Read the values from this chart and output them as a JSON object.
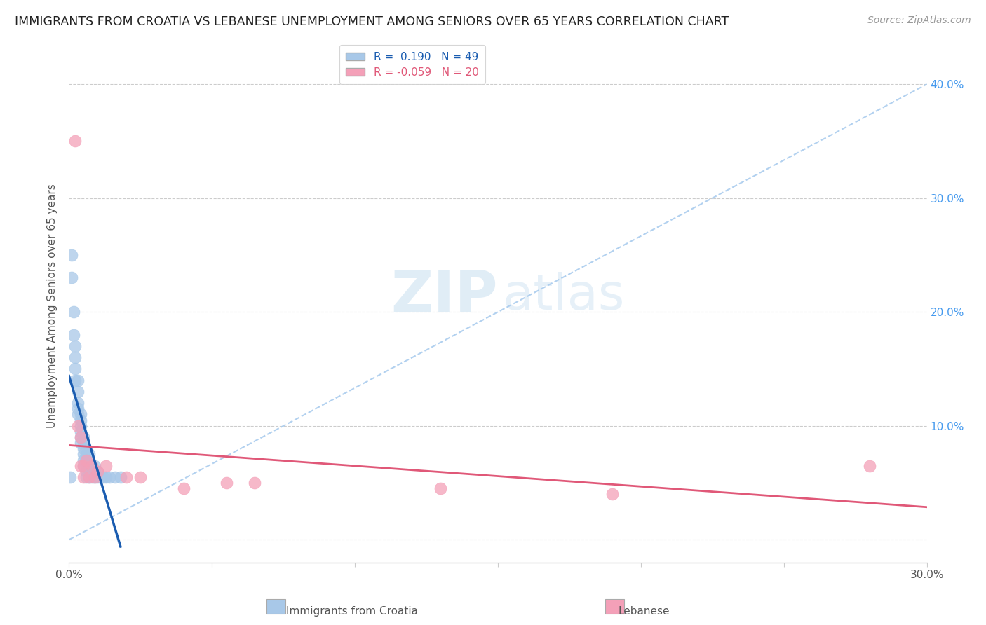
{
  "title": "IMMIGRANTS FROM CROATIA VS LEBANESE UNEMPLOYMENT AMONG SENIORS OVER 65 YEARS CORRELATION CHART",
  "source": "Source: ZipAtlas.com",
  "ylabel": "Unemployment Among Seniors over 65 years",
  "x_label_croatia": "Immigrants from Croatia",
  "x_label_lebanese": "Lebanese",
  "xlim": [
    0.0,
    0.3
  ],
  "ylim": [
    -0.02,
    0.43
  ],
  "xticks": [
    0.0,
    0.05,
    0.1,
    0.15,
    0.2,
    0.25,
    0.3
  ],
  "xtick_labels": [
    "0.0%",
    "",
    "",
    "",
    "",
    "",
    "30.0%"
  ],
  "ytick_labels_right": [
    "",
    "10.0%",
    "20.0%",
    "30.0%",
    "40.0%"
  ],
  "yticks": [
    0.0,
    0.1,
    0.2,
    0.3,
    0.4
  ],
  "R_croatia": 0.19,
  "N_croatia": 49,
  "R_lebanese": -0.059,
  "N_lebanese": 20,
  "color_croatia": "#a8c8e8",
  "color_lebanese": "#f4a0b8",
  "line_color_croatia": "#1a5cb0",
  "line_color_lebanese": "#e05878",
  "scatter_croatia_x": [
    0.0005,
    0.001,
    0.001,
    0.0015,
    0.0015,
    0.002,
    0.002,
    0.002,
    0.002,
    0.003,
    0.003,
    0.003,
    0.003,
    0.003,
    0.004,
    0.004,
    0.004,
    0.004,
    0.004,
    0.004,
    0.005,
    0.005,
    0.005,
    0.005,
    0.005,
    0.005,
    0.006,
    0.006,
    0.006,
    0.006,
    0.006,
    0.007,
    0.007,
    0.007,
    0.007,
    0.008,
    0.008,
    0.008,
    0.009,
    0.009,
    0.009,
    0.01,
    0.01,
    0.011,
    0.012,
    0.013,
    0.014,
    0.016,
    0.018
  ],
  "scatter_croatia_y": [
    0.055,
    0.25,
    0.23,
    0.2,
    0.18,
    0.17,
    0.16,
    0.15,
    0.14,
    0.14,
    0.13,
    0.12,
    0.115,
    0.11,
    0.11,
    0.105,
    0.1,
    0.095,
    0.09,
    0.085,
    0.09,
    0.085,
    0.08,
    0.075,
    0.07,
    0.065,
    0.075,
    0.07,
    0.065,
    0.06,
    0.055,
    0.075,
    0.065,
    0.06,
    0.055,
    0.065,
    0.06,
    0.055,
    0.065,
    0.06,
    0.055,
    0.06,
    0.055,
    0.055,
    0.055,
    0.055,
    0.055,
    0.055,
    0.055
  ],
  "scatter_lebanese_x": [
    0.002,
    0.003,
    0.004,
    0.004,
    0.005,
    0.005,
    0.006,
    0.007,
    0.008,
    0.009,
    0.01,
    0.013,
    0.02,
    0.025,
    0.04,
    0.055,
    0.065,
    0.13,
    0.19,
    0.28
  ],
  "scatter_lebanese_y": [
    0.35,
    0.1,
    0.09,
    0.065,
    0.065,
    0.055,
    0.07,
    0.055,
    0.065,
    0.055,
    0.06,
    0.065,
    0.055,
    0.055,
    0.045,
    0.05,
    0.05,
    0.045,
    0.04,
    0.065
  ],
  "watermark_zip": "ZIP",
  "watermark_atlas": "atlas",
  "background_color": "#ffffff",
  "grid_color": "#cccccc",
  "dash_line_color": "#aaccee"
}
